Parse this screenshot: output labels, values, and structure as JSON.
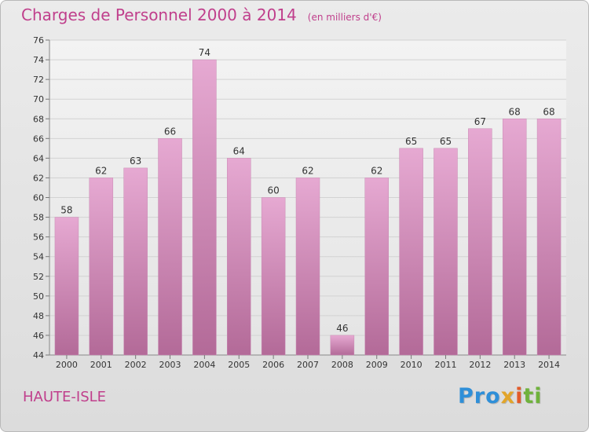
{
  "chart_data": {
    "type": "bar",
    "title": "Charges de Personnel 2000 à 2014",
    "subtitle": "(en milliers d'€)",
    "categories": [
      "2000",
      "2001",
      "2002",
      "2003",
      "2004",
      "2005",
      "2006",
      "2007",
      "2008",
      "2009",
      "2010",
      "2011",
      "2012",
      "2013",
      "2014"
    ],
    "values": [
      58,
      62,
      63,
      66,
      74,
      64,
      60,
      62,
      46,
      62,
      65,
      65,
      67,
      68,
      68
    ],
    "ylim": [
      44,
      76
    ],
    "yticks": [
      44,
      46,
      48,
      50,
      52,
      54,
      56,
      58,
      60,
      62,
      64,
      66,
      68,
      70,
      72,
      74,
      76
    ],
    "grid": true,
    "bar_color": "#d48fbd"
  },
  "place": "HAUTE-ISLE",
  "logo": {
    "parts": [
      "Pro",
      "x",
      "i",
      "ti"
    ],
    "colors": [
      "#2f8fd8",
      "#e2a52a",
      "#e25b2a",
      "#6fb23c"
    ]
  }
}
